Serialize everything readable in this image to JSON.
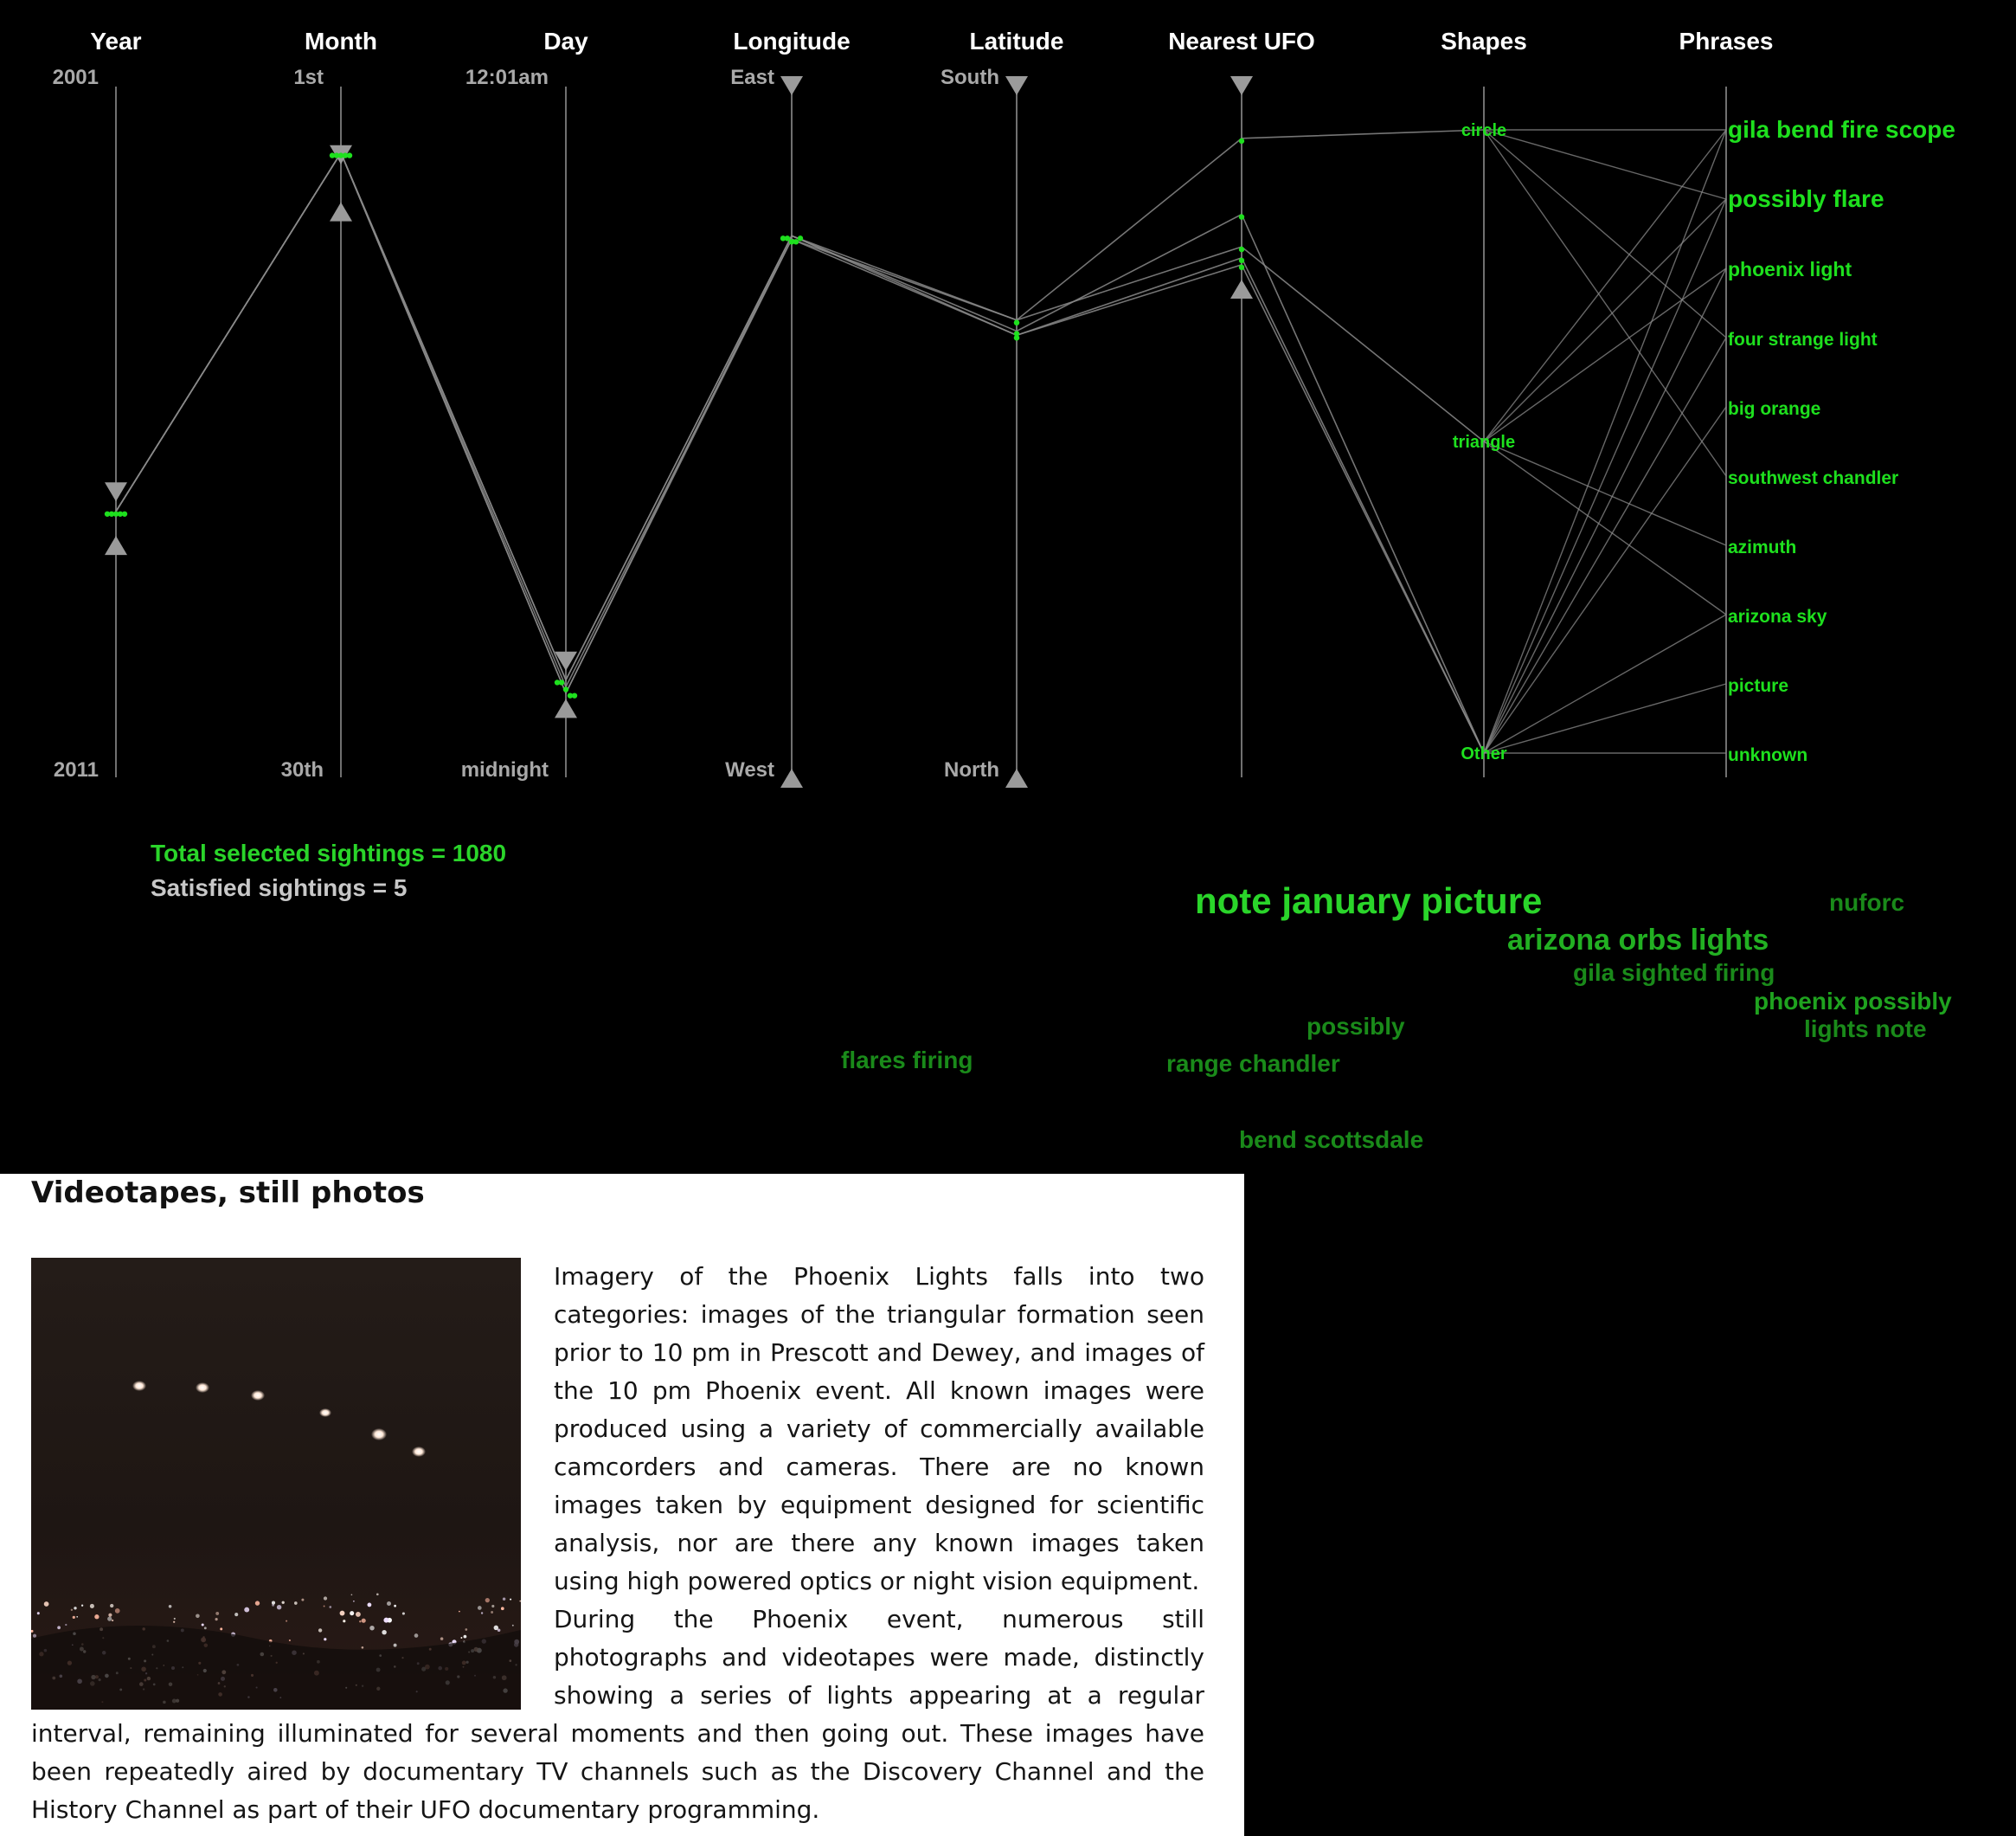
{
  "axes": [
    {
      "key": "year",
      "title": "Year",
      "top_label": "2001",
      "bottom_label": "2011"
    },
    {
      "key": "month",
      "title": "Month",
      "top_label": "1st",
      "bottom_label": "30th"
    },
    {
      "key": "day",
      "title": "Day",
      "top_label": "12:01am",
      "bottom_label": "midnight"
    },
    {
      "key": "longitude",
      "title": "Longitude",
      "top_label": "East",
      "bottom_label": "West"
    },
    {
      "key": "latitude",
      "title": "Latitude",
      "top_label": "South",
      "bottom_label": "North"
    },
    {
      "key": "nearest_ufo",
      "title": "Nearest UFO",
      "top_label": "",
      "bottom_label": ""
    },
    {
      "key": "shapes",
      "title": "Shapes",
      "categories": [
        "circle",
        "triangle",
        "Other"
      ]
    },
    {
      "key": "phrases",
      "title": "Phrases",
      "categories": [
        "gila bend fire scope",
        "possibly flare",
        "phoenix light",
        "four strange light",
        "big orange",
        "southwest chandler",
        "azimuth",
        "arizona sky",
        "picture",
        "unknown"
      ]
    }
  ],
  "selection": {
    "year": [
      0.588,
      0.663
    ],
    "month": [
      0.1,
      0.18
    ],
    "day": [
      0.833,
      0.899
    ],
    "longitude": [
      0.0,
      1.0
    ],
    "latitude": [
      0.0,
      1.0
    ],
    "nearest_ufo": [
      0.0,
      0.292
    ]
  },
  "sightings": [
    {
      "year": 0.615,
      "month": 0.096,
      "day": 0.859,
      "longitude": 0.216,
      "latitude": 0.338,
      "nearest_ufo": 0.075,
      "shape": "circle"
    },
    {
      "year": 0.615,
      "month": 0.096,
      "day": 0.859,
      "longitude": 0.216,
      "latitude": 0.354,
      "nearest_ufo": 0.185,
      "shape": "Other"
    },
    {
      "year": 0.615,
      "month": 0.096,
      "day": 0.869,
      "longitude": 0.221,
      "latitude": 0.338,
      "nearest_ufo": 0.232,
      "shape": "triangle"
    },
    {
      "year": 0.615,
      "month": 0.096,
      "day": 0.878,
      "longitude": 0.221,
      "latitude": 0.36,
      "nearest_ufo": 0.248,
      "shape": "Other"
    },
    {
      "year": 0.615,
      "month": 0.096,
      "day": 0.878,
      "longitude": 0.216,
      "latitude": 0.36,
      "nearest_ufo": 0.258,
      "shape": "Other"
    }
  ],
  "shape_phrase_links": [
    [
      "circle",
      "gila bend fire scope"
    ],
    [
      "circle",
      "possibly flare"
    ],
    [
      "circle",
      "four strange light"
    ],
    [
      "circle",
      "southwest chandler"
    ],
    [
      "triangle",
      "gila bend fire scope"
    ],
    [
      "triangle",
      "possibly flare"
    ],
    [
      "triangle",
      "phoenix light"
    ],
    [
      "triangle",
      "azimuth"
    ],
    [
      "triangle",
      "arizona sky"
    ],
    [
      "Other",
      "gila bend fire scope"
    ],
    [
      "Other",
      "possibly flare"
    ],
    [
      "Other",
      "phoenix light"
    ],
    [
      "Other",
      "four strange light"
    ],
    [
      "Other",
      "big orange"
    ],
    [
      "Other",
      "arizona sky"
    ],
    [
      "Other",
      "picture"
    ],
    [
      "Other",
      "unknown"
    ]
  ],
  "phrase_emphasis": {
    "gila bend fire scope": "large",
    "possibly flare": "large",
    "phoenix light": "medium",
    "four strange light": "small",
    "big orange": "small",
    "southwest chandler": "small",
    "azimuth": "small",
    "arizona sky": "small",
    "picture": "small",
    "unknown": "small"
  },
  "stats": {
    "total": "Total selected sightings = 1080",
    "satisfied": "Satisfied sightings = 5"
  },
  "word_cloud": {
    "w1": "note january picture",
    "w2": "nuforc",
    "w3": "arizona orbs lights",
    "w4": "gila sighted firing",
    "w5": "phoenix possibly",
    "w6": "lights note",
    "w7": "possibly",
    "w8": "flares firing",
    "w9": "range chandler",
    "w10": "bend scottsdale"
  },
  "colors": {
    "green": "#1ee01e",
    "cloud_bright": "#2ad52a",
    "cloud_mid": "#1fa31f",
    "cloud_dim": "#1a8a1a",
    "axis": "#707070",
    "triangle": "#9a9a9a"
  },
  "article": {
    "heading": "Videotapes, still photos",
    "paragraph1": "Imagery of the Phoenix Lights falls into two categories: images of the triangular formation seen prior to 10 pm in Prescott and Dewey, and images of the 10 pm Phoenix event. All known images were produced using a variety of commercially available camcorders and cameras. There are no known images taken by equipment designed for scientific analysis, nor are there any known images taken using high powered optics or night vision equipment.",
    "paragraph2": "During the Phoenix event, numerous still photographs and videotapes were made, distinctly showing a series of lights appearing at a regular interval, remaining illuminated for several moments and then going out. These images have been repeatedly aired by documentary TV channels such as the Discovery Channel and the History Channel as part of their UFO documentary programming."
  }
}
